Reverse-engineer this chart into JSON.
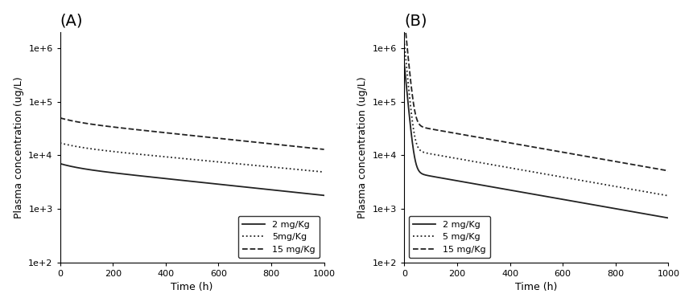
{
  "panel_A_label": "(A)",
  "panel_B_label": "(B)",
  "ylabel": "Plasma concentration (ug/L)",
  "xlabel": "Time (h)",
  "xlim": [
    0,
    1000
  ],
  "ylim": [
    100,
    2000000
  ],
  "yticks": [
    100,
    1000,
    10000,
    100000,
    1000000
  ],
  "ytick_labels": [
    "1e+2",
    "1e+3",
    "1e+4",
    "1e+5",
    "1e+6"
  ],
  "xticks": [
    0,
    200,
    400,
    600,
    800,
    1000
  ],
  "legend_labels_A": [
    "2 mg/Kg",
    "5mg/Kg",
    "15 mg/Kg"
  ],
  "legend_labels_B": [
    "2 mg/Kg",
    "5 mg/Kg",
    "15 mg/Kg"
  ],
  "line_styles": [
    "-",
    ":",
    "--"
  ],
  "line_color": "#222222",
  "line_width": 1.3,
  "A_C0": [
    7000,
    17000,
    50000
  ],
  "A_Cend": [
    1100,
    3200,
    8000
  ],
  "B_fast_A": [
    490000,
    1200000,
    3700000
  ],
  "B_fast_k": [
    0.12,
    0.12,
    0.12
  ],
  "B_slow_A": [
    5000,
    13000,
    38000
  ],
  "B_slow_k": [
    0.002,
    0.002,
    0.002
  ],
  "background_color": "#ffffff",
  "title_fontsize": 14,
  "label_fontsize": 9,
  "tick_fontsize": 8,
  "legend_fontsize": 8
}
